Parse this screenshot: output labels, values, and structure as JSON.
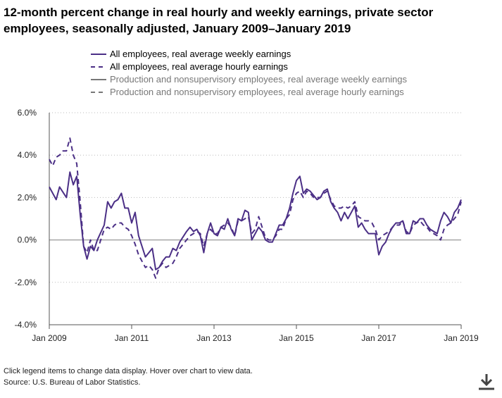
{
  "chart_data": {
    "type": "line",
    "title": "12-month percent change in real hourly and weekly earnings, private sector employees, seasonally adjusted, January 2009–January 2019",
    "xlabel": "",
    "ylabel": "",
    "x_start": "2009-01",
    "x_end": "2019-01",
    "ylim": [
      -4,
      6
    ],
    "y_ticks": [
      -4,
      -2,
      0,
      2,
      4,
      6
    ],
    "y_tick_labels": [
      "-4.0%",
      "-2.0%",
      "0.0%",
      "2.0%",
      "4.0%",
      "6.0%"
    ],
    "x_ticks": [
      0,
      24,
      48,
      72,
      96,
      120
    ],
    "x_tick_labels": [
      "Jan 2009",
      "Jan 2011",
      "Jan 2013",
      "Jan 2015",
      "Jan 2017",
      "Jan 2019"
    ],
    "grid": true,
    "legend_position": "top",
    "series": [
      {
        "name": "All employees, real average weekly earnings",
        "color": "#4B2F86",
        "dash": "solid",
        "visible": true,
        "anchors": [
          [
            0,
            2.5
          ],
          [
            2,
            1.9
          ],
          [
            3,
            2.5
          ],
          [
            5,
            2.0
          ],
          [
            6,
            3.2
          ],
          [
            7,
            2.6
          ],
          [
            8,
            3.0
          ],
          [
            9,
            1.2
          ],
          [
            10,
            -0.3
          ],
          [
            11,
            -0.9
          ],
          [
            12,
            -0.3
          ],
          [
            13,
            -0.5
          ],
          [
            14,
            0.0
          ],
          [
            16,
            0.7
          ],
          [
            17,
            1.8
          ],
          [
            18,
            1.5
          ],
          [
            19,
            1.8
          ],
          [
            20,
            1.9
          ],
          [
            21,
            2.2
          ],
          [
            22,
            1.5
          ],
          [
            23,
            1.5
          ],
          [
            24,
            0.8
          ],
          [
            25,
            1.3
          ],
          [
            26,
            0.2
          ],
          [
            28,
            -0.8
          ],
          [
            29,
            -0.6
          ],
          [
            30,
            -0.4
          ],
          [
            31,
            -1.4
          ],
          [
            32,
            -1.3
          ],
          [
            33,
            -1.0
          ],
          [
            34,
            -0.8
          ],
          [
            35,
            -0.8
          ],
          [
            36,
            -0.4
          ],
          [
            37,
            -0.5
          ],
          [
            38,
            -0.1
          ],
          [
            40,
            0.4
          ],
          [
            41,
            0.6
          ],
          [
            42,
            0.4
          ],
          [
            43,
            0.5
          ],
          [
            44,
            0.2
          ],
          [
            45,
            -0.6
          ],
          [
            46,
            0.3
          ],
          [
            47,
            0.8
          ],
          [
            48,
            0.3
          ],
          [
            49,
            0.2
          ],
          [
            50,
            0.6
          ],
          [
            51,
            0.5
          ],
          [
            52,
            1.0
          ],
          [
            53,
            0.5
          ],
          [
            54,
            0.2
          ],
          [
            55,
            1.0
          ],
          [
            56,
            0.9
          ],
          [
            57,
            1.4
          ],
          [
            58,
            1.3
          ],
          [
            59,
            0.0
          ],
          [
            60,
            0.3
          ],
          [
            61,
            0.6
          ],
          [
            62,
            0.4
          ],
          [
            63,
            0.0
          ],
          [
            64,
            -0.1
          ],
          [
            65,
            -0.1
          ],
          [
            66,
            0.3
          ],
          [
            67,
            0.7
          ],
          [
            68,
            0.7
          ],
          [
            69,
            1.0
          ],
          [
            70,
            1.5
          ],
          [
            71,
            2.2
          ],
          [
            72,
            2.8
          ],
          [
            73,
            3.0
          ],
          [
            74,
            2.2
          ],
          [
            75,
            2.4
          ],
          [
            76,
            2.3
          ],
          [
            77,
            2.1
          ],
          [
            78,
            1.9
          ],
          [
            79,
            2.0
          ],
          [
            80,
            2.3
          ],
          [
            81,
            2.4
          ],
          [
            82,
            1.8
          ],
          [
            83,
            1.5
          ],
          [
            84,
            1.3
          ],
          [
            85,
            0.9
          ],
          [
            86,
            1.3
          ],
          [
            87,
            1.0
          ],
          [
            88,
            1.3
          ],
          [
            89,
            1.6
          ],
          [
            90,
            0.6
          ],
          [
            91,
            0.8
          ],
          [
            92,
            0.5
          ],
          [
            93,
            0.3
          ],
          [
            94,
            0.3
          ],
          [
            95,
            0.3
          ],
          [
            96,
            -0.7
          ],
          [
            97,
            -0.3
          ],
          [
            98,
            -0.1
          ],
          [
            99,
            0.3
          ],
          [
            100,
            0.6
          ],
          [
            101,
            0.8
          ],
          [
            102,
            0.8
          ],
          [
            103,
            0.9
          ],
          [
            104,
            0.3
          ],
          [
            105,
            0.3
          ],
          [
            106,
            0.9
          ],
          [
            107,
            0.8
          ],
          [
            108,
            1.0
          ],
          [
            109,
            1.0
          ],
          [
            110,
            0.7
          ],
          [
            111,
            0.5
          ],
          [
            112,
            0.4
          ],
          [
            113,
            0.3
          ],
          [
            114,
            0.9
          ],
          [
            115,
            1.3
          ],
          [
            116,
            1.1
          ],
          [
            117,
            0.8
          ],
          [
            118,
            1.3
          ],
          [
            119,
            1.5
          ],
          [
            120,
            1.9
          ]
        ]
      },
      {
        "name": "All employees, real average hourly earnings",
        "color": "#4B2F86",
        "dash": "dashed",
        "visible": true,
        "anchors": [
          [
            0,
            3.8
          ],
          [
            1,
            3.5
          ],
          [
            2,
            3.9
          ],
          [
            3,
            4.0
          ],
          [
            4,
            4.2
          ],
          [
            5,
            4.2
          ],
          [
            6,
            4.8
          ],
          [
            7,
            4.0
          ],
          [
            8,
            3.6
          ],
          [
            9,
            1.8
          ],
          [
            10,
            -0.3
          ],
          [
            11,
            -0.6
          ],
          [
            12,
            0.0
          ],
          [
            13,
            -0.5
          ],
          [
            14,
            -0.5
          ],
          [
            15,
            0.0
          ],
          [
            16,
            0.5
          ],
          [
            17,
            0.6
          ],
          [
            18,
            0.5
          ],
          [
            19,
            0.7
          ],
          [
            20,
            0.8
          ],
          [
            21,
            0.8
          ],
          [
            22,
            0.6
          ],
          [
            23,
            0.5
          ],
          [
            24,
            0.2
          ],
          [
            25,
            -0.2
          ],
          [
            26,
            -0.7
          ],
          [
            27,
            -1.0
          ],
          [
            28,
            -1.3
          ],
          [
            29,
            -1.2
          ],
          [
            30,
            -1.4
          ],
          [
            31,
            -1.8
          ],
          [
            32,
            -1.3
          ],
          [
            33,
            -1.1
          ],
          [
            34,
            -1.3
          ],
          [
            35,
            -1.2
          ],
          [
            36,
            -1.1
          ],
          [
            37,
            -0.8
          ],
          [
            38,
            -0.4
          ],
          [
            40,
            0.0
          ],
          [
            41,
            0.2
          ],
          [
            42,
            0.3
          ],
          [
            43,
            0.4
          ],
          [
            44,
            0.3
          ],
          [
            45,
            -0.3
          ],
          [
            46,
            0.3
          ],
          [
            47,
            0.5
          ],
          [
            48,
            0.3
          ],
          [
            49,
            0.3
          ],
          [
            50,
            0.6
          ],
          [
            51,
            0.7
          ],
          [
            52,
            0.8
          ],
          [
            53,
            0.6
          ],
          [
            54,
            0.2
          ],
          [
            55,
            0.9
          ],
          [
            56,
            0.9
          ],
          [
            57,
            1.0
          ],
          [
            58,
            1.1
          ],
          [
            59,
            0.3
          ],
          [
            60,
            0.5
          ],
          [
            61,
            1.1
          ],
          [
            62,
            0.6
          ],
          [
            63,
            0.1
          ],
          [
            64,
            0.0
          ],
          [
            65,
            0.0
          ],
          [
            66,
            0.2
          ],
          [
            67,
            0.5
          ],
          [
            68,
            0.5
          ],
          [
            69,
            1.0
          ],
          [
            70,
            1.2
          ],
          [
            71,
            1.9
          ],
          [
            72,
            2.2
          ],
          [
            73,
            2.3
          ],
          [
            74,
            2.0
          ],
          [
            75,
            2.3
          ],
          [
            76,
            2.2
          ],
          [
            77,
            2.0
          ],
          [
            78,
            2.0
          ],
          [
            79,
            2.0
          ],
          [
            80,
            2.2
          ],
          [
            81,
            2.3
          ],
          [
            82,
            1.9
          ],
          [
            83,
            1.6
          ],
          [
            84,
            1.5
          ],
          [
            85,
            1.5
          ],
          [
            86,
            1.6
          ],
          [
            87,
            1.5
          ],
          [
            88,
            1.6
          ],
          [
            89,
            1.8
          ],
          [
            90,
            1.1
          ],
          [
            91,
            1.0
          ],
          [
            92,
            0.9
          ],
          [
            93,
            0.9
          ],
          [
            94,
            0.8
          ],
          [
            95,
            0.5
          ],
          [
            96,
            0.0
          ],
          [
            97,
            0.2
          ],
          [
            98,
            0.3
          ],
          [
            99,
            0.4
          ],
          [
            100,
            0.6
          ],
          [
            101,
            0.7
          ],
          [
            102,
            0.7
          ],
          [
            103,
            0.9
          ],
          [
            104,
            0.4
          ],
          [
            105,
            0.3
          ],
          [
            106,
            0.7
          ],
          [
            107,
            0.8
          ],
          [
            108,
            0.9
          ],
          [
            109,
            0.7
          ],
          [
            110,
            0.6
          ],
          [
            111,
            0.4
          ],
          [
            112,
            0.3
          ],
          [
            113,
            0.2
          ],
          [
            114,
            0.0
          ],
          [
            115,
            0.5
          ],
          [
            116,
            0.7
          ],
          [
            117,
            0.8
          ],
          [
            118,
            1.0
          ],
          [
            119,
            1.2
          ],
          [
            120,
            1.8
          ]
        ]
      },
      {
        "name": "Production and nonsupervisory employees, real average weekly earnings",
        "color": "#777777",
        "dash": "solid",
        "visible": false,
        "anchors": []
      },
      {
        "name": "Production and nonsupervisory employees, real average hourly earnings",
        "color": "#777777",
        "dash": "dashed",
        "visible": false,
        "anchors": []
      }
    ]
  },
  "footer": {
    "note": "Click legend items to change data display. Hover over chart to view data.",
    "source": "Source: U.S. Bureau of Labor Statistics."
  },
  "colors": {
    "accent": "#4B2F86",
    "inactive": "#777777",
    "grid": "#bbbbbb",
    "zero_line": "#999999"
  },
  "icons": {
    "download": "download-icon"
  }
}
